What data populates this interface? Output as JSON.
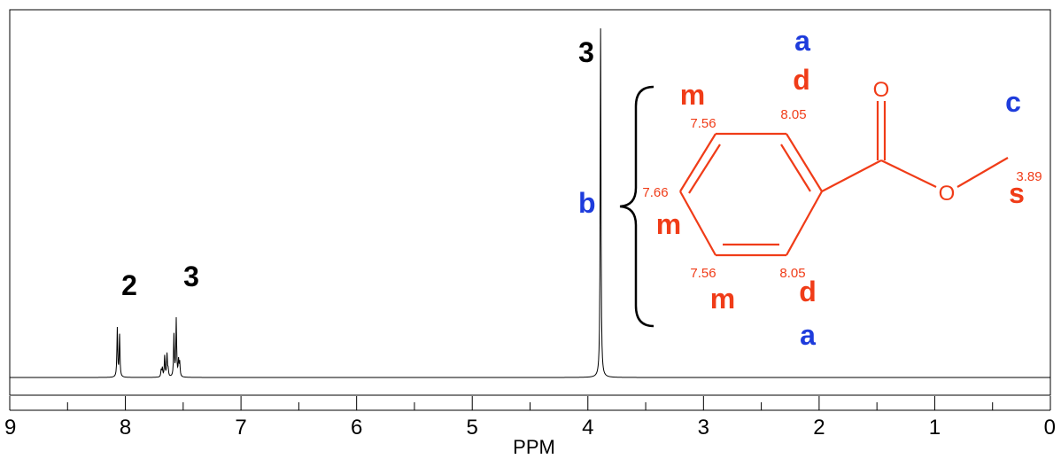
{
  "chart_data": {
    "type": "line",
    "title": "",
    "xlabel": "PPM",
    "ylabel": "",
    "xlim": [
      9,
      0
    ],
    "x_reversed": true,
    "x_major_ticks": [
      "9",
      "8",
      "7",
      "6",
      "5",
      "4",
      "3",
      "2",
      "1",
      "0"
    ],
    "x_minor_tick_step": 0.5,
    "grid": false,
    "series": [
      {
        "peaks": [
          {
            "ppm": 8.07,
            "height": 0.14
          },
          {
            "ppm": 8.05,
            "height": 0.12
          },
          {
            "ppm": 7.69,
            "height": 0.02
          },
          {
            "ppm": 7.68,
            "height": 0.025
          },
          {
            "ppm": 7.66,
            "height": 0.06
          },
          {
            "ppm": 7.64,
            "height": 0.065
          },
          {
            "ppm": 7.63,
            "height": 0.02
          },
          {
            "ppm": 7.58,
            "height": 0.12
          },
          {
            "ppm": 7.56,
            "height": 0.165
          },
          {
            "ppm": 7.54,
            "height": 0.045
          },
          {
            "ppm": 7.53,
            "height": 0.04
          },
          {
            "ppm": 3.89,
            "height": 1.0
          }
        ]
      }
    ],
    "peak_annotations": [
      {
        "ppm": 8.05,
        "text": "2"
      },
      {
        "ppm": 7.56,
        "text": "3"
      },
      {
        "ppm": 3.89,
        "text": "3"
      }
    ]
  },
  "structure": {
    "color": "#f03c18",
    "label_color": "#1e3cdc",
    "oxygen_carbonyl": "O",
    "oxygen_ester": "O",
    "brace_label": "b",
    "shifts": {
      "ortho_top": "8.05",
      "meta_top": "7.56",
      "para": "7.66",
      "meta_bottom": "7.56",
      "ortho_bottom": "8.05",
      "methyl": "3.89"
    },
    "multiplicities": {
      "ortho_top": "d",
      "meta_top": "m",
      "para": "m",
      "meta_bottom": "m",
      "ortho_bottom": "d",
      "methyl": "s"
    },
    "group_labels": {
      "ortho_top": "a",
      "ortho_bottom": "a",
      "methyl": "c"
    }
  }
}
